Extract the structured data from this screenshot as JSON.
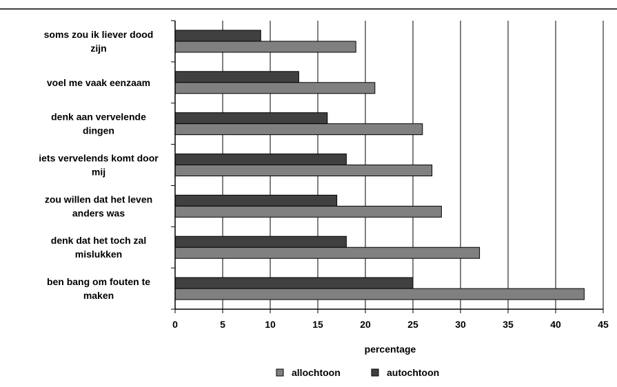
{
  "chart_data": {
    "type": "bar",
    "orientation": "horizontal",
    "categories": [
      [
        "soms zou ik liever dood",
        "zijn"
      ],
      [
        "voel me vaak eenzaam"
      ],
      [
        "denk aan vervelende",
        "dingen"
      ],
      [
        "iets vervelends komt door",
        "mij"
      ],
      [
        "zou willen dat het leven",
        "anders was"
      ],
      [
        "denk dat het toch zal",
        "mislukken"
      ],
      [
        "ben bang om fouten te",
        "maken"
      ]
    ],
    "series": [
      {
        "name": "autochtoon",
        "color": "#404040",
        "values": [
          9,
          13,
          16,
          18,
          17,
          18,
          25
        ]
      },
      {
        "name": "allochtoon",
        "color": "#808080",
        "values": [
          19,
          21,
          26,
          27,
          28,
          32,
          43
        ]
      }
    ],
    "legend_order": [
      "allochtoon",
      "autochtoon"
    ],
    "xlabel": "percentage",
    "ylabel": "",
    "xlim": [
      0,
      45
    ],
    "xticks": [
      0,
      5,
      10,
      15,
      20,
      25,
      30,
      35,
      40,
      45
    ],
    "grid": "vertical",
    "legend_position": "bottom"
  }
}
